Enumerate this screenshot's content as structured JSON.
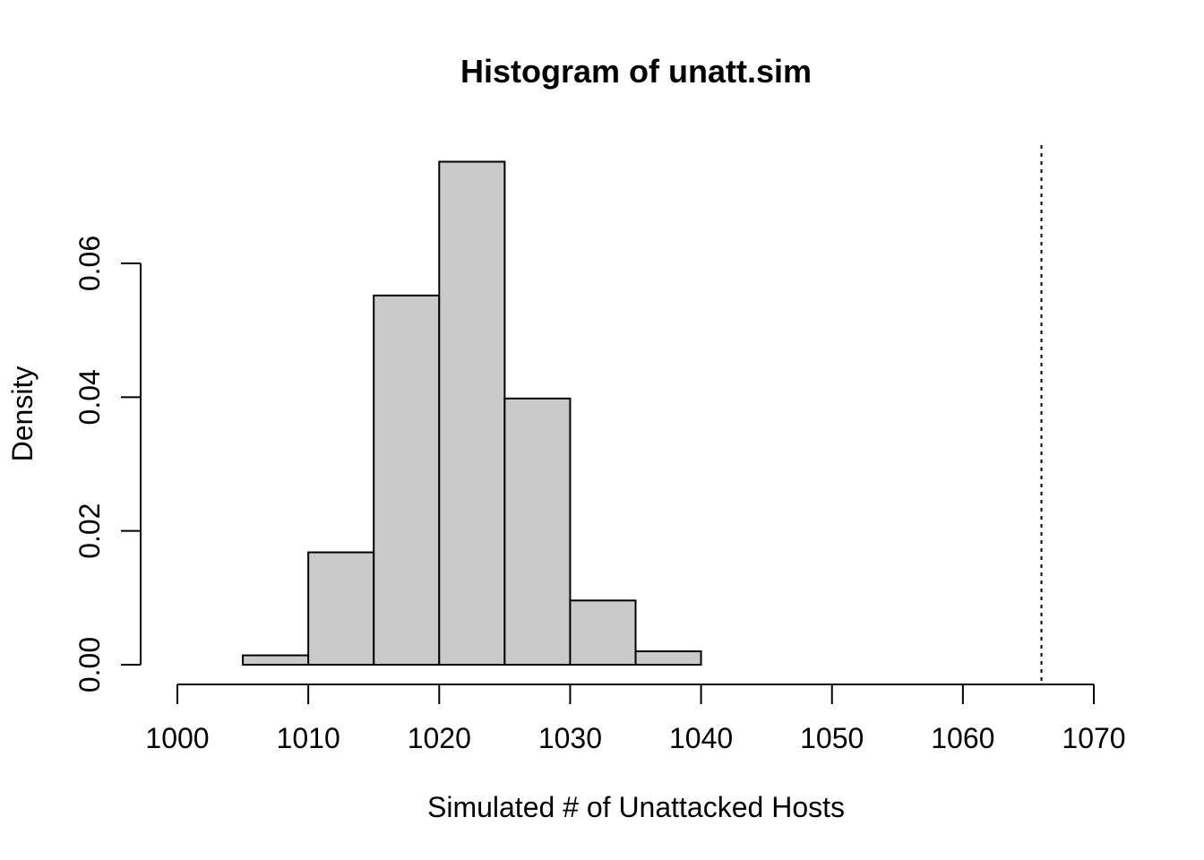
{
  "chart_data": {
    "type": "bar",
    "title": "Histogram of unatt.sim",
    "xlabel": "Simulated # of Unattacked Hosts",
    "ylabel": "Density",
    "xlim": [
      1000,
      1070
    ],
    "ylim": [
      0,
      0.06
    ],
    "bins": [
      {
        "start": 1005,
        "end": 1010,
        "density": 0.0014
      },
      {
        "start": 1010,
        "end": 1015,
        "density": 0.0168
      },
      {
        "start": 1015,
        "end": 1020,
        "density": 0.0552
      },
      {
        "start": 1020,
        "end": 1025,
        "density": 0.0752
      },
      {
        "start": 1025,
        "end": 1030,
        "density": 0.0398
      },
      {
        "start": 1030,
        "end": 1035,
        "density": 0.0096
      },
      {
        "start": 1035,
        "end": 1040,
        "density": 0.002
      }
    ],
    "x_ticks": [
      1000,
      1010,
      1020,
      1030,
      1040,
      1050,
      1060,
      1070
    ],
    "x_tick_labels": [
      "1000",
      "1010",
      "1020",
      "1030",
      "1040",
      "1050",
      "1060",
      "1070"
    ],
    "y_ticks": [
      0,
      0.02,
      0.04,
      0.06
    ],
    "y_tick_labels": [
      "0.00",
      "0.02",
      "0.04",
      "0.06"
    ],
    "reference_line": {
      "x": 1066,
      "style": "dotted"
    },
    "bar_fill": "#cacaca",
    "bar_stroke": "#000000",
    "grid": false,
    "legend": "none"
  }
}
